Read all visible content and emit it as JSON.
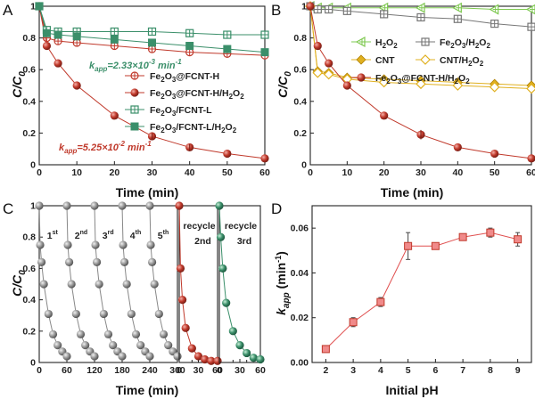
{
  "chart_data": [
    {
      "panel": "A",
      "type": "scatter",
      "xlabel": "Time (min)",
      "ylabel": "C/C0",
      "xlim": [
        0,
        60
      ],
      "ylim": [
        0,
        1.0
      ],
      "xticks": [
        0,
        10,
        20,
        30,
        40,
        50,
        60
      ],
      "yticks": [
        0,
        0.2,
        0.4,
        0.6,
        0.8,
        1.0
      ],
      "legend_position": "right",
      "series": [
        {
          "name": "Fe2O3@FCNT-H",
          "color": "#c0392b",
          "marker": "circle-plus",
          "x": [
            0,
            2,
            5,
            10,
            20,
            30,
            40,
            50,
            60
          ],
          "y": [
            1.0,
            0.8,
            0.78,
            0.77,
            0.75,
            0.73,
            0.71,
            0.7,
            0.69
          ]
        },
        {
          "name": "Fe2O3@FCNT-H/H2O2",
          "color": "#c0392b",
          "marker": "sphere",
          "x": [
            0,
            2,
            5,
            10,
            20,
            30,
            40,
            50,
            60
          ],
          "y": [
            1.0,
            0.75,
            0.64,
            0.5,
            0.31,
            0.18,
            0.11,
            0.07,
            0.04
          ]
        },
        {
          "name": "Fe2O3/FCNT-L",
          "color": "#3b8f6a",
          "marker": "square-plus",
          "x": [
            0,
            2,
            5,
            10,
            20,
            30,
            40,
            50,
            60
          ],
          "y": [
            1.0,
            0.85,
            0.84,
            0.84,
            0.84,
            0.84,
            0.83,
            0.82,
            0.82
          ]
        },
        {
          "name": "Fe2O3/FCNT-L/H2O2",
          "color": "#3b8f6a",
          "marker": "square-filled",
          "x": [
            0,
            2,
            5,
            10,
            20,
            30,
            40,
            50,
            60
          ],
          "y": [
            1.0,
            0.83,
            0.82,
            0.81,
            0.79,
            0.77,
            0.75,
            0.73,
            0.71
          ]
        }
      ],
      "annotations": [
        {
          "prefix": "k",
          "sub": "app",
          "text": "=2.33×10",
          "sup": "-3",
          "suffix": " min",
          "sup2": "-1",
          "color": "#3b8f6a"
        },
        {
          "prefix": "k",
          "sub": "app",
          "text": "=5.25×10",
          "sup": "-2",
          "suffix": " min",
          "sup2": "-1",
          "color": "#c0392b"
        }
      ]
    },
    {
      "panel": "B",
      "type": "scatter",
      "xlabel": "Time (min)",
      "ylabel": "C/C0",
      "xlim": [
        0,
        60
      ],
      "ylim": [
        0,
        1.0
      ],
      "xticks": [
        0,
        10,
        20,
        30,
        40,
        50,
        60
      ],
      "yticks": [
        0,
        0.2,
        0.4,
        0.6,
        0.8,
        1.0
      ],
      "legend_position": "center-right",
      "series": [
        {
          "name": "H2O2",
          "color": "#7ec850",
          "marker": "triangle-left-plus",
          "x": [
            0,
            2,
            5,
            10,
            20,
            30,
            40,
            50,
            60
          ],
          "y": [
            1.0,
            0.99,
            0.99,
            0.99,
            0.99,
            0.99,
            0.99,
            0.98,
            0.98
          ]
        },
        {
          "name": "Fe2O3/H2O2",
          "color": "#777777",
          "marker": "square-plus",
          "x": [
            0,
            2,
            5,
            10,
            20,
            30,
            40,
            50,
            60
          ],
          "y": [
            1.0,
            0.98,
            0.98,
            0.97,
            0.95,
            0.93,
            0.92,
            0.89,
            0.87
          ]
        },
        {
          "name": "CNT",
          "color": "#e0b020",
          "marker": "diamond-filled",
          "x": [
            0,
            2,
            5,
            10,
            20,
            30,
            40,
            50,
            60
          ],
          "y": [
            1.0,
            0.59,
            0.58,
            0.55,
            0.54,
            0.53,
            0.52,
            0.51,
            0.5
          ]
        },
        {
          "name": "CNT/H2O2",
          "color": "#e0b020",
          "marker": "diamond-open",
          "x": [
            0,
            2,
            5,
            10,
            20,
            30,
            40,
            50,
            60
          ],
          "y": [
            1.0,
            0.58,
            0.57,
            0.54,
            0.52,
            0.51,
            0.5,
            0.49,
            0.48
          ]
        },
        {
          "name": "Fe2O3@FCNT-H/H2O2",
          "color": "#c0392b",
          "marker": "sphere",
          "x": [
            0,
            2,
            5,
            10,
            20,
            30,
            40,
            50,
            60
          ],
          "y": [
            1.0,
            0.75,
            0.64,
            0.5,
            0.31,
            0.19,
            0.11,
            0.07,
            0.04
          ]
        }
      ]
    },
    {
      "panel": "C",
      "type": "scatter",
      "xlabel": "Time (min)",
      "ylabel": "C/C0",
      "ylim": [
        0,
        1.0
      ],
      "yticks": [
        0,
        0.2,
        0.4,
        0.6,
        0.8,
        1.0
      ],
      "subpanels": [
        {
          "name": "cycles",
          "xlim": [
            0,
            300
          ],
          "xticks": [
            0,
            60,
            120,
            180,
            240,
            300
          ],
          "color": "#888888",
          "labels": [
            {
              "base": "1",
              "sup": "st"
            },
            {
              "base": "2",
              "sup": "nd"
            },
            {
              "base": "3",
              "sup": "rd"
            },
            {
              "base": "4",
              "sup": "th"
            },
            {
              "base": "5",
              "sup": "th"
            }
          ],
          "cycle_offsets": [
            0,
            60,
            120,
            180,
            240
          ],
          "cycle_x": [
            0,
            2,
            5,
            10,
            20,
            30,
            40,
            50,
            60
          ],
          "cycle_y": [
            1.0,
            0.75,
            0.64,
            0.5,
            0.31,
            0.18,
            0.11,
            0.07,
            0.04
          ]
        },
        {
          "name": "recycle-2nd",
          "xlim": [
            0,
            60
          ],
          "xticks": [
            0,
            30,
            60
          ],
          "minor_ticks": [
            20,
            40
          ],
          "color": "#c0392b",
          "label": "recycle",
          "label_sub": "2nd",
          "x": [
            0,
            2,
            5,
            10,
            20,
            30,
            40,
            50,
            60
          ],
          "y": [
            1.0,
            0.6,
            0.4,
            0.22,
            0.09,
            0.04,
            0.02,
            0.01,
            0.01
          ]
        },
        {
          "name": "recycle-3rd",
          "xlim": [
            0,
            60
          ],
          "xticks": [
            0,
            30,
            60
          ],
          "minor_ticks": [
            20,
            40
          ],
          "color": "#3b8f6a",
          "label": "recycle",
          "label_sub": "3rd",
          "x": [
            0,
            2,
            5,
            10,
            20,
            30,
            40,
            50,
            60
          ],
          "y": [
            1.0,
            0.8,
            0.6,
            0.38,
            0.2,
            0.11,
            0.06,
            0.03,
            0.02
          ]
        }
      ]
    },
    {
      "panel": "D",
      "type": "line",
      "xlabel": "Initial pH",
      "ylabel": "k_app (min^-1)",
      "xlim": [
        1.5,
        9.5
      ],
      "ylim": [
        0,
        0.07
      ],
      "xticks": [
        2,
        3,
        4,
        5,
        6,
        7,
        8,
        9
      ],
      "yticks": [
        0,
        0.02,
        0.04,
        0.06
      ],
      "color": "#e05050",
      "x": [
        2,
        3,
        4,
        5,
        6,
        7,
        8,
        9
      ],
      "y": [
        0.006,
        0.018,
        0.027,
        0.052,
        0.052,
        0.056,
        0.058,
        0.055
      ],
      "err": [
        0.0005,
        0.002,
        0.002,
        0.006,
        0.001,
        0.001,
        0.002,
        0.003
      ]
    }
  ],
  "labels": {
    "panelA": "A",
    "panelB": "B",
    "panelC": "C",
    "panelD": "D",
    "time_axis": "Time (min)",
    "ph_axis": "Initial pH",
    "cc0_main": "C/C",
    "cc0_sub": "0",
    "kapp_main": "k",
    "kapp_sub": "app",
    "kapp_unit": " (min",
    "kapp_sup": "-1",
    "kapp_close": ")"
  }
}
